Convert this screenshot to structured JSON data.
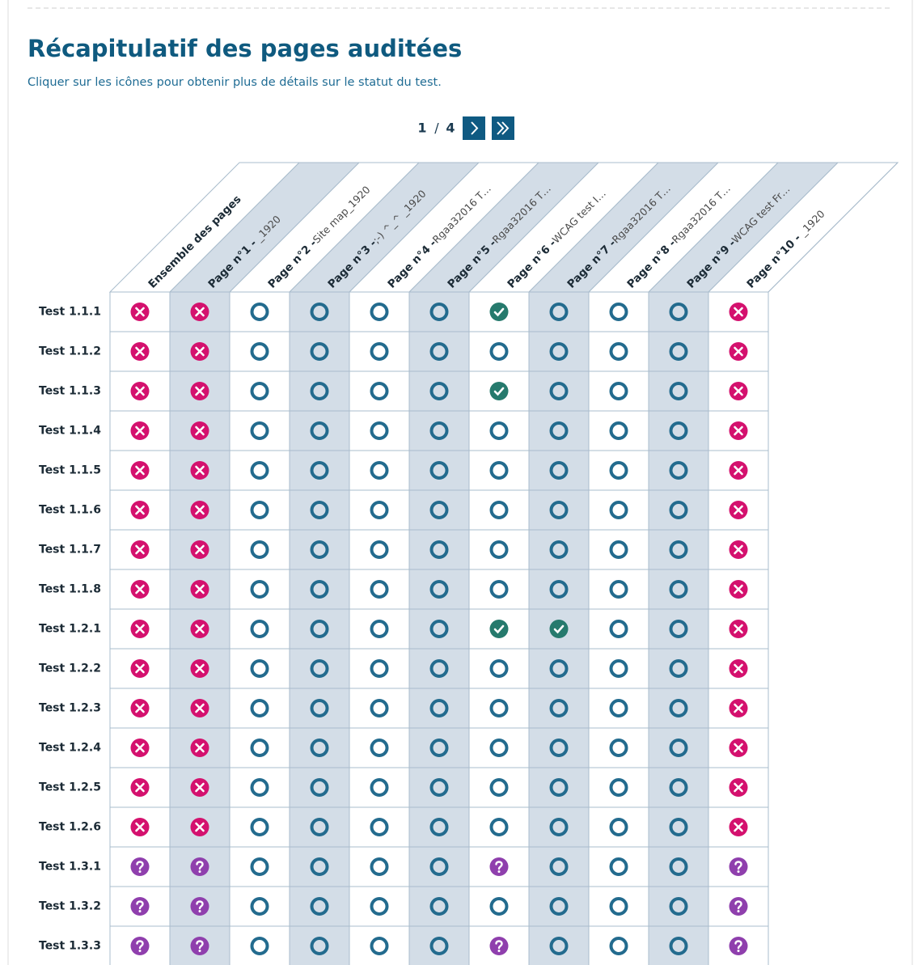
{
  "title": "Récapitulatif des pages auditées",
  "subtitle": "Cliquer sur les icônes pour obtenir plus de détails sur le statut du test.",
  "pagination": {
    "current": 1,
    "separator": "/",
    "total": 4
  },
  "columns": [
    {
      "bold": "Ensemble des pages"
    },
    {
      "bold": "Page n°1 -",
      "rest": " _1920"
    },
    {
      "bold": "Page n°2 -",
      "rest": "Site map_1920"
    },
    {
      "bold": "Page n°3 -",
      "rest": ";-) ^_^ _1920"
    },
    {
      "bold": "Page n°4 -",
      "rest": "Rgaa32016 T…"
    },
    {
      "bold": "Page n°5 -",
      "rest": "Rgaa32016 T…"
    },
    {
      "bold": "Page n°6 -",
      "rest": "WCAG test I…"
    },
    {
      "bold": "Page n°7 -",
      "rest": "Rgaa32016 T…"
    },
    {
      "bold": "Page n°8 -",
      "rest": "Rgaa32016 T…"
    },
    {
      "bold": "Page n°9 -",
      "rest": "WCAG test Fr…"
    },
    {
      "bold": "Page n°10 -",
      "rest": " _1920"
    }
  ],
  "rows": [
    {
      "label": "Test 1.1.1",
      "statuses": [
        "failed",
        "failed",
        "untested",
        "untested",
        "untested",
        "untested",
        "passed",
        "untested",
        "untested",
        "untested",
        "failed"
      ]
    },
    {
      "label": "Test 1.1.2",
      "statuses": [
        "failed",
        "failed",
        "untested",
        "untested",
        "untested",
        "untested",
        "untested",
        "untested",
        "untested",
        "untested",
        "failed"
      ]
    },
    {
      "label": "Test 1.1.3",
      "statuses": [
        "failed",
        "failed",
        "untested",
        "untested",
        "untested",
        "untested",
        "passed",
        "untested",
        "untested",
        "untested",
        "failed"
      ]
    },
    {
      "label": "Test 1.1.4",
      "statuses": [
        "failed",
        "failed",
        "untested",
        "untested",
        "untested",
        "untested",
        "untested",
        "untested",
        "untested",
        "untested",
        "failed"
      ]
    },
    {
      "label": "Test 1.1.5",
      "statuses": [
        "failed",
        "failed",
        "untested",
        "untested",
        "untested",
        "untested",
        "untested",
        "untested",
        "untested",
        "untested",
        "failed"
      ]
    },
    {
      "label": "Test 1.1.6",
      "statuses": [
        "failed",
        "failed",
        "untested",
        "untested",
        "untested",
        "untested",
        "untested",
        "untested",
        "untested",
        "untested",
        "failed"
      ]
    },
    {
      "label": "Test 1.1.7",
      "statuses": [
        "failed",
        "failed",
        "untested",
        "untested",
        "untested",
        "untested",
        "untested",
        "untested",
        "untested",
        "untested",
        "failed"
      ]
    },
    {
      "label": "Test 1.1.8",
      "statuses": [
        "failed",
        "failed",
        "untested",
        "untested",
        "untested",
        "untested",
        "untested",
        "untested",
        "untested",
        "untested",
        "failed"
      ]
    },
    {
      "label": "Test 1.2.1",
      "statuses": [
        "failed",
        "failed",
        "untested",
        "untested",
        "untested",
        "untested",
        "passed",
        "passed",
        "untested",
        "untested",
        "failed"
      ]
    },
    {
      "label": "Test 1.2.2",
      "statuses": [
        "failed",
        "failed",
        "untested",
        "untested",
        "untested",
        "untested",
        "untested",
        "untested",
        "untested",
        "untested",
        "failed"
      ]
    },
    {
      "label": "Test 1.2.3",
      "statuses": [
        "failed",
        "failed",
        "untested",
        "untested",
        "untested",
        "untested",
        "untested",
        "untested",
        "untested",
        "untested",
        "failed"
      ]
    },
    {
      "label": "Test 1.2.4",
      "statuses": [
        "failed",
        "failed",
        "untested",
        "untested",
        "untested",
        "untested",
        "untested",
        "untested",
        "untested",
        "untested",
        "failed"
      ]
    },
    {
      "label": "Test 1.2.5",
      "statuses": [
        "failed",
        "failed",
        "untested",
        "untested",
        "untested",
        "untested",
        "untested",
        "untested",
        "untested",
        "untested",
        "failed"
      ]
    },
    {
      "label": "Test 1.2.6",
      "statuses": [
        "failed",
        "failed",
        "untested",
        "untested",
        "untested",
        "untested",
        "untested",
        "untested",
        "untested",
        "untested",
        "failed"
      ]
    },
    {
      "label": "Test 1.3.1",
      "statuses": [
        "undetermined",
        "undetermined",
        "untested",
        "untested",
        "untested",
        "untested",
        "undetermined",
        "untested",
        "untested",
        "untested",
        "undetermined"
      ]
    },
    {
      "label": "Test 1.3.2",
      "statuses": [
        "undetermined",
        "undetermined",
        "untested",
        "untested",
        "untested",
        "untested",
        "untested",
        "untested",
        "untested",
        "untested",
        "undetermined"
      ]
    },
    {
      "label": "Test 1.3.3",
      "statuses": [
        "undetermined",
        "undetermined",
        "untested",
        "untested",
        "untested",
        "untested",
        "undetermined",
        "untested",
        "untested",
        "untested",
        "undetermined"
      ]
    }
  ]
}
